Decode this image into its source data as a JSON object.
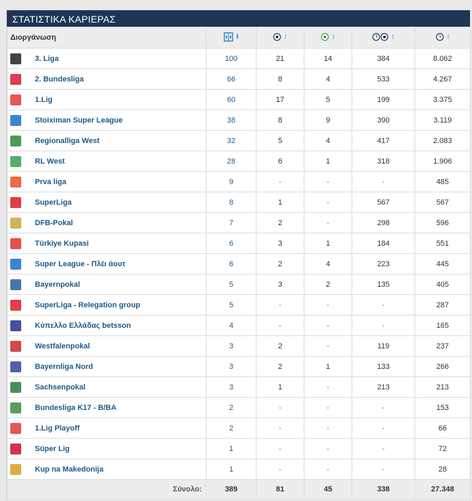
{
  "title": "ΣΤΑΤΙΣΤΙΚΑ ΚΑΡΙΕΡΑΣ",
  "columns": {
    "competition": "Διοργάνωση",
    "icons": [
      "appearances-icon",
      "goals-icon",
      "assists-icon",
      "minutes-per-goal-icon",
      "minutes-played-icon"
    ]
  },
  "rows": [
    {
      "name": "3. Liga",
      "apps": "100",
      "goals": "21",
      "assists": "14",
      "mpg": "384",
      "mins": "8.062",
      "logo_color": "#222222"
    },
    {
      "name": "2. Bundesliga",
      "apps": "66",
      "goals": "8",
      "assists": "4",
      "mpg": "533",
      "mins": "4.267",
      "logo_color": "#d3202a"
    },
    {
      "name": "1.Lig",
      "apps": "60",
      "goals": "17",
      "assists": "5",
      "mpg": "199",
      "mins": "3.375",
      "logo_color": "#e23a3a"
    },
    {
      "name": "Stoiximan Super League",
      "apps": "38",
      "goals": "8",
      "assists": "9",
      "mpg": "390",
      "mins": "3.119",
      "logo_color": "#1d6cc8"
    },
    {
      "name": "Regionalliga West",
      "apps": "32",
      "goals": "5",
      "assists": "4",
      "mpg": "417",
      "mins": "2.083",
      "logo_color": "#2e8b3a"
    },
    {
      "name": "RL West",
      "apps": "28",
      "goals": "6",
      "assists": "1",
      "mpg": "318",
      "mins": "1.906",
      "logo_color": "#3aa04a"
    },
    {
      "name": "Prva liga",
      "apps": "9",
      "goals": "-",
      "assists": "-",
      "mpg": "-",
      "mins": "485",
      "logo_color": "#e8502a"
    },
    {
      "name": "SuperLiga",
      "apps": "8",
      "goals": "1",
      "assists": "-",
      "mpg": "567",
      "mins": "567",
      "logo_color": "#d71f26"
    },
    {
      "name": "DFB-Pokal",
      "apps": "7",
      "goals": "2",
      "assists": "-",
      "mpg": "298",
      "mins": "596",
      "logo_color": "#c9a43a"
    },
    {
      "name": "Türkiye Kupasi",
      "apps": "6",
      "goals": "3",
      "assists": "1",
      "mpg": "184",
      "mins": "551",
      "logo_color": "#e03030"
    },
    {
      "name": "Super League - Πλέι άουτ",
      "apps": "6",
      "goals": "2",
      "assists": "4",
      "mpg": "223",
      "mins": "445",
      "logo_color": "#1d6cc8"
    },
    {
      "name": "Bayernpokal",
      "apps": "5",
      "goals": "3",
      "assists": "2",
      "mpg": "135",
      "mins": "405",
      "logo_color": "#2a5aa0"
    },
    {
      "name": "SuperLiga - Relegation group",
      "apps": "5",
      "goals": "-",
      "assists": "-",
      "mpg": "-",
      "mins": "287",
      "logo_color": "#d71f26"
    },
    {
      "name": "Κύπελλο Ελλάδας betsson",
      "apps": "4",
      "goals": "-",
      "assists": "-",
      "mpg": "-",
      "mins": "165",
      "logo_color": "#23348a"
    },
    {
      "name": "Westfalenpokal",
      "apps": "3",
      "goals": "2",
      "assists": "-",
      "mpg": "119",
      "mins": "237",
      "logo_color": "#c82a2a"
    },
    {
      "name": "Bayernliga Nord",
      "apps": "3",
      "goals": "2",
      "assists": "1",
      "mpg": "133",
      "mins": "266",
      "logo_color": "#2a4a9a"
    },
    {
      "name": "Sachsenpokal",
      "apps": "3",
      "goals": "1",
      "assists": "-",
      "mpg": "213",
      "mins": "213",
      "logo_color": "#2e7a3a"
    },
    {
      "name": "Bundesliga K17 - B/BA",
      "apps": "2",
      "goals": "-",
      "assists": "-",
      "mpg": "-",
      "mins": "153",
      "logo_color": "#3a8a4a"
    },
    {
      "name": "1.Lig Playoff",
      "apps": "2",
      "goals": "-",
      "assists": "-",
      "mpg": "-",
      "mins": "66",
      "logo_color": "#e23a3a"
    },
    {
      "name": "Süper Lig",
      "apps": "1",
      "goals": "-",
      "assists": "-",
      "mpg": "-",
      "mins": "72",
      "logo_color": "#c8102e"
    },
    {
      "name": "Kup na Makedonija",
      "apps": "1",
      "goals": "-",
      "assists": "-",
      "mpg": "-",
      "mins": "28",
      "logo_color": "#d4a020"
    }
  ],
  "totals": {
    "label": "Σύνολο:",
    "apps": "389",
    "goals": "81",
    "assists": "45",
    "mpg": "338",
    "mins": "27.348"
  }
}
